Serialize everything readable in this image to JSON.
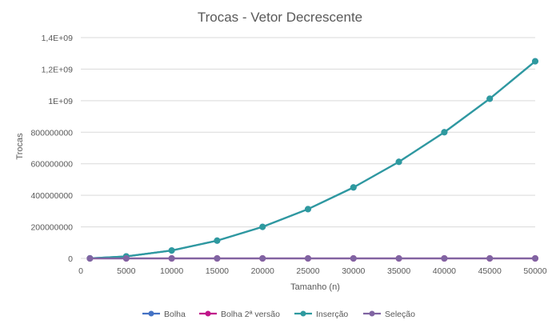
{
  "chart_data": {
    "type": "line",
    "title": "Trocas - Vetor Decrescente",
    "xlabel": "Tamanho (n)",
    "ylabel": "Trocas",
    "x": [
      1000,
      5000,
      10000,
      15000,
      20000,
      25000,
      30000,
      35000,
      40000,
      45000,
      50000
    ],
    "xlim": [
      0,
      50000
    ],
    "ylim": [
      0,
      1400000000
    ],
    "xticks": [
      0,
      5000,
      10000,
      15000,
      20000,
      25000,
      30000,
      35000,
      40000,
      45000,
      50000
    ],
    "xtick_labels": [
      "0",
      "5000",
      "10000",
      "15000",
      "20000",
      "25000",
      "30000",
      "35000",
      "40000",
      "45000",
      "50000"
    ],
    "yticks": [
      0,
      200000000,
      400000000,
      600000000,
      800000000,
      1000000000,
      1200000000,
      1400000000
    ],
    "ytick_labels": [
      "0",
      "200000000",
      "400000000",
      "600000000",
      "800000000",
      "1E+09",
      "1,2E+09",
      "1,4E+09"
    ],
    "grid": "horizontal",
    "legend_position": "bottom",
    "series": [
      {
        "name": "Bolha",
        "color": "#4472C4",
        "values": [
          499500,
          12497500,
          49995000,
          112492500,
          199990000,
          312487500,
          449985000,
          612482500,
          799980000,
          1012477500,
          1249975000
        ]
      },
      {
        "name": "Bolha 2ª versão",
        "color": "#C0158A",
        "values": [
          0,
          0,
          0,
          0,
          0,
          0,
          0,
          0,
          0,
          0,
          0
        ]
      },
      {
        "name": "Inserção",
        "color": "#2E9A9F",
        "values": [
          499500,
          12497500,
          49995000,
          112492500,
          199990000,
          312487500,
          449985000,
          612482500,
          799980000,
          1012477500,
          1249975000
        ]
      },
      {
        "name": "Seleção",
        "color": "#8064A2",
        "values": [
          500,
          2500,
          5000,
          7500,
          10000,
          12500,
          15000,
          17500,
          20000,
          22500,
          25000
        ]
      }
    ]
  }
}
